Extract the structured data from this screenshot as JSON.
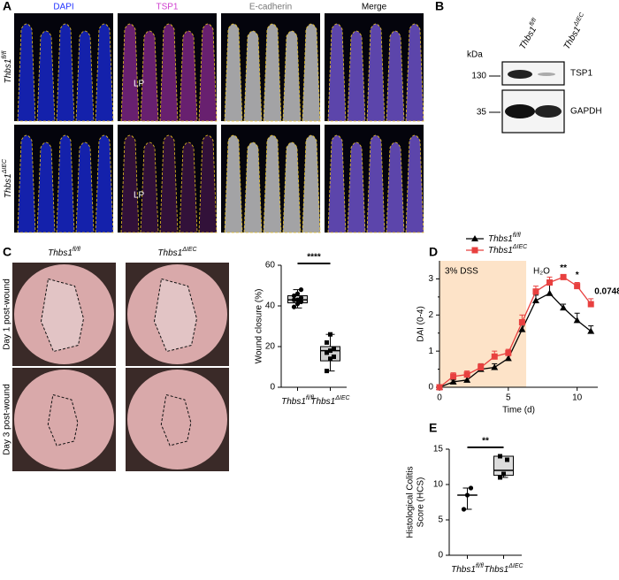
{
  "panel_a": {
    "letter": "A",
    "channels": [
      "DAPI",
      "TSP1",
      "E-cadherin",
      "Merge"
    ],
    "rows": [
      {
        "base": "Thbs1",
        "sup": "fl/fl"
      },
      {
        "base": "Thbs1",
        "sup": "ΔIEC"
      }
    ],
    "lp_labels": [
      "LP",
      "LP"
    ]
  },
  "panel_b": {
    "letter": "B",
    "lanes": [
      {
        "base": "Thbs1",
        "sup": "fl/fl"
      },
      {
        "base": "Thbs1",
        "sup": "ΔIEC"
      }
    ],
    "kda_label": "kDa",
    "markers": [
      130,
      35
    ],
    "bands": [
      "TSP1",
      "GAPDH"
    ]
  },
  "panel_c_images": {
    "letter": "C",
    "columns": [
      {
        "base": "Thbs1",
        "sup": "fl/fl"
      },
      {
        "base": "Thbs1",
        "sup": "ΔIEC"
      }
    ],
    "rows": [
      "Day 1 post-wound",
      "Day 3 post-wound"
    ]
  },
  "chart_data": [
    {
      "type": "box",
      "panel": "",
      "ylabel": [
        "Wound closure (%)"
      ],
      "color": "#d0d0d0",
      "categories": [
        {
          "base": "Thbs1",
          "sup": "fl/fl"
        },
        {
          "base": "Thbs1",
          "sup": "ΔIEC"
        }
      ],
      "boxes": [
        {
          "min": 39,
          "q1": 41.5,
          "median": 43,
          "q3": 45,
          "max": 48,
          "points": [
            39.5,
            41,
            42,
            43,
            43,
            44,
            45,
            46,
            48
          ]
        },
        {
          "min": 8,
          "q1": 13,
          "median": 18,
          "q3": 20,
          "max": 26,
          "points": [
            8,
            14,
            15,
            17,
            18,
            19,
            22,
            26
          ]
        }
      ],
      "significance": "****",
      "ylim": [
        0,
        60
      ],
      "yticks": [
        0,
        20,
        40,
        60
      ]
    },
    {
      "type": "line",
      "panel": "D",
      "xlabel": "Time (d)",
      "ylabel": "DAI (0-4)",
      "x": [
        0,
        1,
        2,
        3,
        4,
        5,
        6,
        7,
        8,
        9,
        10,
        11
      ],
      "series": [
        {
          "name": {
            "base": "Thbs1",
            "sup": "fl/fl"
          },
          "color": "#000000",
          "marker": "triangle",
          "values": [
            0,
            0.15,
            0.2,
            0.5,
            0.55,
            0.8,
            1.6,
            2.4,
            2.6,
            2.2,
            1.85,
            1.55
          ],
          "errors": [
            0,
            0.05,
            0.1,
            0.15,
            0.1,
            0.1,
            0.15,
            0.15,
            0.25,
            0.1,
            0.2,
            0.15
          ]
        },
        {
          "name": {
            "base": "Thbs1",
            "sup": "ΔIEC"
          },
          "color": "#e8403f",
          "marker": "square",
          "values": [
            0,
            0.3,
            0.35,
            0.55,
            0.85,
            0.95,
            1.8,
            2.65,
            2.9,
            3.05,
            2.8,
            2.3
          ],
          "errors": [
            0,
            0.1,
            0.1,
            0.1,
            0.15,
            0.1,
            0.2,
            0.15,
            0.15,
            0.05,
            0.1,
            0.15
          ]
        }
      ],
      "shade": {
        "x0": 0,
        "x1": 6.3,
        "label": "3% DSS",
        "color": "#fde3c8"
      },
      "after_label": "H₂O",
      "annotations": [
        {
          "x": 9,
          "text": "**"
        },
        {
          "x": 10,
          "text": "*"
        },
        {
          "x": 11,
          "text": "0.0748"
        }
      ],
      "xlim": [
        0,
        11.5
      ],
      "xticks": [
        0,
        5,
        10
      ],
      "ylim": [
        0,
        3.5
      ],
      "yticks": [
        0,
        1,
        2,
        3
      ]
    },
    {
      "type": "box",
      "panel": "E",
      "ylabel": [
        "Histological Colitis",
        "Score (HCS)"
      ],
      "color": "#dcdcdc",
      "categories": [
        {
          "base": "Thbs1",
          "sup": "fl/fl"
        },
        {
          "base": "Thbs1",
          "sup": "ΔIEC"
        }
      ],
      "boxes": [
        {
          "min": 6.5,
          "q1": 8.5,
          "median": 8.5,
          "q3": 8.5,
          "max": 9.5,
          "points": [
            6.5,
            8.5,
            9.5
          ]
        },
        {
          "min": 11,
          "q1": 11.3,
          "median": 12,
          "q3": 14,
          "max": 14,
          "points": [
            11,
            11.5,
            13.5,
            14
          ]
        }
      ],
      "significance": "**",
      "ylim": [
        0,
        15
      ],
      "yticks": [
        0,
        5,
        10,
        15
      ]
    }
  ]
}
